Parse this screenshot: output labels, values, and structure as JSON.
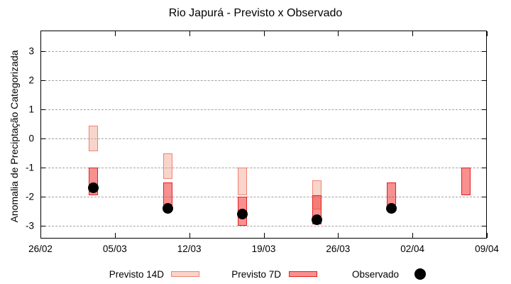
{
  "title": "Rio Japurá - Previsto x Observado",
  "chart_data": {
    "type": "bar",
    "subtype": "forecast-range-boxes-with-observed-dots",
    "title": "Rio Japurá - Previsto x Observado",
    "xlabel": "",
    "ylabel": "Anomalia de Preciptação Categorizada",
    "grid": "horizontal-dashed",
    "x_tick_labels": [
      "26/02",
      "05/03",
      "12/03",
      "19/03",
      "26/03",
      "02/04",
      "09/04"
    ],
    "x_tick_days": [
      0,
      7,
      14,
      21,
      28,
      35,
      42
    ],
    "xlim_days": [
      0,
      42
    ],
    "y_ticks": [
      3,
      2,
      1,
      0,
      -1,
      -2,
      -3
    ],
    "ylim": [
      -3.44,
      3.71
    ],
    "colors": {
      "previsto14d_fill": "rgba(242,159,139,0.45)",
      "previsto14d_border": "#ee8372",
      "previsto7d_fill": "rgba(242,53,53,0.55)",
      "previsto7d_border": "#e51f1f",
      "observado": "#000000",
      "gridline": "#a3a3a3"
    },
    "series": [
      {
        "name": "Previsto 14D",
        "type": "box",
        "points": [
          {
            "date": "03/03",
            "day": 5,
            "hi": 0.45,
            "lo": -0.45
          },
          {
            "date": "10/03",
            "day": 12,
            "hi": -0.5,
            "lo": -1.4
          },
          {
            "date": "17/03",
            "day": 19,
            "hi": -1.0,
            "lo": -1.95
          },
          {
            "date": "24/03",
            "day": 26,
            "hi": -1.45,
            "lo": -2.45
          }
        ]
      },
      {
        "name": "Previsto 7D",
        "type": "box",
        "points": [
          {
            "date": "03/03",
            "day": 5,
            "hi": -1.0,
            "lo": -1.95
          },
          {
            "date": "10/03",
            "day": 12,
            "hi": -1.5,
            "lo": -2.3
          },
          {
            "date": "17/03",
            "day": 19,
            "hi": -2.0,
            "lo": -3.0
          },
          {
            "date": "24/03",
            "day": 26,
            "hi": -1.95,
            "lo": -2.95
          },
          {
            "date": "31/03",
            "day": 33,
            "hi": -1.5,
            "lo": -2.3
          },
          {
            "date": "07/04",
            "day": 40,
            "hi": -1.0,
            "lo": -1.95
          }
        ]
      },
      {
        "name": "Observado",
        "type": "dot",
        "points": [
          {
            "date": "03/03",
            "day": 5,
            "value": -1.7
          },
          {
            "date": "10/03",
            "day": 12,
            "value": -2.4
          },
          {
            "date": "17/03",
            "day": 19,
            "value": -2.6
          },
          {
            "date": "24/03",
            "day": 26,
            "value": -2.8
          },
          {
            "date": "31/03",
            "day": 33,
            "value": -2.4
          }
        ]
      }
    ],
    "legend_position": "bottom-center"
  },
  "legend": [
    {
      "label": "Previsto 14D"
    },
    {
      "label": "Previsto 7D"
    },
    {
      "label": "Observado"
    }
  ]
}
